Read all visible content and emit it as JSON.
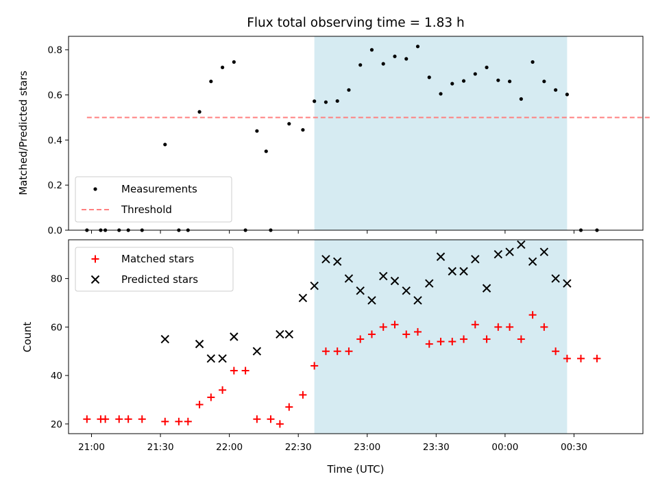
{
  "chart_data": {
    "type": "scatter",
    "title": "Flux total observing time = 1.83 h",
    "xlabel": "Time (UTC)",
    "x_ticks": [
      "21:00",
      "21:30",
      "22:00",
      "22:30",
      "23:00",
      "23:30",
      "00:00",
      "00:30"
    ],
    "x_range": [
      "20:50",
      "01:00"
    ],
    "shaded_interval": [
      "22:37",
      "00:27"
    ],
    "colors": {
      "measurement": "#000000",
      "threshold": "#ff7f7f",
      "matched": "#ff0000",
      "predicted": "#000000",
      "shade": "#add8e6"
    },
    "top": {
      "ylabel": "Matched/Predicted stars",
      "ylim": [
        0,
        0.86
      ],
      "y_ticks": [
        "0.0",
        "0.2",
        "0.4",
        "0.6",
        "0.8"
      ],
      "threshold": 0.5,
      "threshold_span": [
        "20:58",
        "01:03"
      ],
      "legend": {
        "position": "lower-left",
        "entries": [
          "Measurements",
          "Threshold"
        ]
      },
      "series": [
        {
          "name": "Measurements",
          "marker": "dot",
          "points": [
            [
              "20:58",
              0
            ],
            [
              "21:04",
              0
            ],
            [
              "21:06",
              0
            ],
            [
              "21:12",
              0
            ],
            [
              "21:16",
              0
            ],
            [
              "21:22",
              0
            ],
            [
              "21:32",
              0.38
            ],
            [
              "21:38",
              0
            ],
            [
              "21:42",
              0
            ],
            [
              "21:47",
              0.525
            ],
            [
              "21:52",
              0.66
            ],
            [
              "21:57",
              0.722
            ],
            [
              "22:02",
              0.746
            ],
            [
              "22:07",
              0
            ],
            [
              "22:12",
              0.44
            ],
            [
              "22:16",
              0.35
            ],
            [
              "22:18",
              0
            ],
            [
              "22:26",
              0.472
            ],
            [
              "22:32",
              0.445
            ],
            [
              "22:37",
              0.572
            ],
            [
              "22:42",
              0.568
            ],
            [
              "22:47",
              0.573
            ],
            [
              "22:52",
              0.622
            ],
            [
              "22:57",
              0.733
            ],
            [
              "23:02",
              0.8
            ],
            [
              "23:07",
              0.738
            ],
            [
              "23:12",
              0.771
            ],
            [
              "23:17",
              0.76
            ],
            [
              "23:22",
              0.815
            ],
            [
              "23:27",
              0.678
            ],
            [
              "23:32",
              0.605
            ],
            [
              "23:37",
              0.65
            ],
            [
              "23:42",
              0.662
            ],
            [
              "23:47",
              0.693
            ],
            [
              "23:52",
              0.722
            ],
            [
              "23:57",
              0.665
            ],
            [
              "00:02",
              0.66
            ],
            [
              "00:07",
              0.582
            ],
            [
              "00:12",
              0.746
            ],
            [
              "00:17",
              0.66
            ],
            [
              "00:22",
              0.622
            ],
            [
              "00:27",
              0.602
            ],
            [
              "00:33",
              0
            ],
            [
              "00:40",
              0
            ]
          ]
        }
      ]
    },
    "bottom": {
      "ylabel": "Count",
      "ylim": [
        16,
        96
      ],
      "y_ticks": [
        "20",
        "40",
        "60",
        "80"
      ],
      "legend": {
        "position": "upper-left",
        "entries": [
          "Matched stars",
          "Predicted stars"
        ]
      },
      "series": [
        {
          "name": "Matched stars",
          "marker": "plus",
          "points": [
            [
              "20:58",
              22
            ],
            [
              "21:04",
              22
            ],
            [
              "21:06",
              22
            ],
            [
              "21:12",
              22
            ],
            [
              "21:16",
              22
            ],
            [
              "21:22",
              22
            ],
            [
              "21:32",
              21
            ],
            [
              "21:38",
              21
            ],
            [
              "21:42",
              21
            ],
            [
              "21:47",
              28
            ],
            [
              "21:52",
              31
            ],
            [
              "21:57",
              34
            ],
            [
              "22:02",
              42
            ],
            [
              "22:07",
              42
            ],
            [
              "22:12",
              22
            ],
            [
              "22:18",
              22
            ],
            [
              "22:22",
              20
            ],
            [
              "22:26",
              27
            ],
            [
              "22:32",
              32
            ],
            [
              "22:37",
              44
            ],
            [
              "22:42",
              50
            ],
            [
              "22:47",
              50
            ],
            [
              "22:52",
              50
            ],
            [
              "22:57",
              55
            ],
            [
              "23:02",
              57
            ],
            [
              "23:07",
              60
            ],
            [
              "23:12",
              61
            ],
            [
              "23:17",
              57
            ],
            [
              "23:22",
              58
            ],
            [
              "23:27",
              53
            ],
            [
              "23:32",
              54
            ],
            [
              "23:37",
              54
            ],
            [
              "23:42",
              55
            ],
            [
              "23:47",
              61
            ],
            [
              "23:52",
              55
            ],
            [
              "23:57",
              60
            ],
            [
              "00:02",
              60
            ],
            [
              "00:07",
              55
            ],
            [
              "00:12",
              65
            ],
            [
              "00:17",
              60
            ],
            [
              "00:22",
              50
            ],
            [
              "00:27",
              47
            ],
            [
              "00:33",
              47
            ],
            [
              "00:40",
              47
            ]
          ]
        },
        {
          "name": "Predicted stars",
          "marker": "x",
          "points": [
            [
              "21:32",
              55
            ],
            [
              "21:47",
              53
            ],
            [
              "21:52",
              47
            ],
            [
              "21:57",
              47
            ],
            [
              "22:02",
              56
            ],
            [
              "22:12",
              50
            ],
            [
              "22:22",
              57
            ],
            [
              "22:26",
              57
            ],
            [
              "22:32",
              72
            ],
            [
              "22:37",
              77
            ],
            [
              "22:42",
              88
            ],
            [
              "22:47",
              87
            ],
            [
              "22:52",
              80
            ],
            [
              "22:57",
              75
            ],
            [
              "23:02",
              71
            ],
            [
              "23:07",
              81
            ],
            [
              "23:12",
              79
            ],
            [
              "23:17",
              75
            ],
            [
              "23:22",
              71
            ],
            [
              "23:27",
              78
            ],
            [
              "23:32",
              89
            ],
            [
              "23:37",
              83
            ],
            [
              "23:42",
              83
            ],
            [
              "23:47",
              88
            ],
            [
              "23:52",
              76
            ],
            [
              "23:57",
              90
            ],
            [
              "00:02",
              91
            ],
            [
              "00:07",
              94
            ],
            [
              "00:12",
              87
            ],
            [
              "00:17",
              91
            ],
            [
              "00:22",
              80
            ],
            [
              "00:27",
              78
            ]
          ]
        }
      ]
    }
  }
}
